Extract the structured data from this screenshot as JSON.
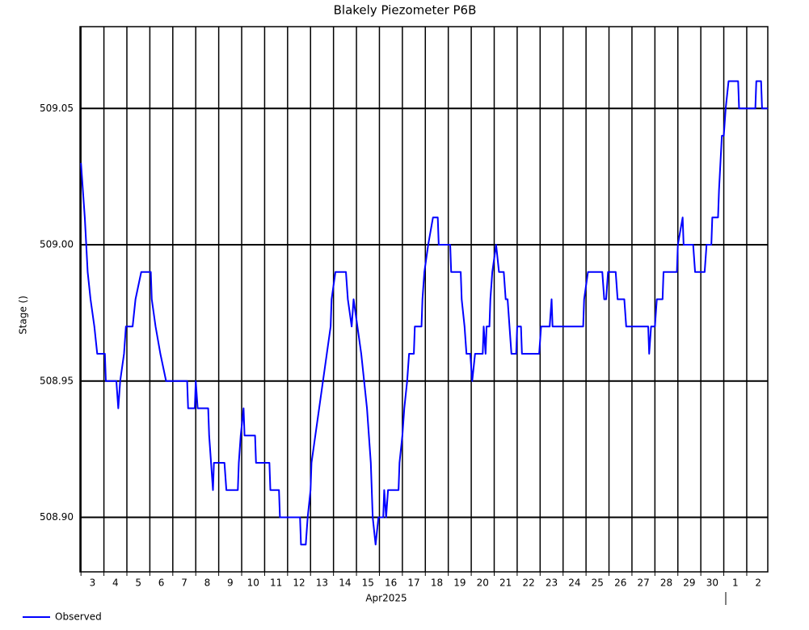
{
  "chart_data": {
    "type": "line",
    "title": "Blakely Piezometer P6B",
    "ylabel": "Stage ()",
    "xlabel": "Apr2025",
    "legend": "bottom left",
    "grid": true,
    "xlim": [
      "2025-04-02T23:00",
      "2025-05-02T22:00"
    ],
    "xticks": [
      {
        "value": "2025-04-03",
        "label": "3"
      },
      {
        "value": "2025-04-04",
        "label": "4"
      },
      {
        "value": "2025-04-05",
        "label": "5"
      },
      {
        "value": "2025-04-06",
        "label": "6"
      },
      {
        "value": "2025-04-07",
        "label": "7"
      },
      {
        "value": "2025-04-08",
        "label": "8"
      },
      {
        "value": "2025-04-09",
        "label": "9"
      },
      {
        "value": "2025-04-10",
        "label": "10"
      },
      {
        "value": "2025-04-11",
        "label": "11"
      },
      {
        "value": "2025-04-12",
        "label": "12"
      },
      {
        "value": "2025-04-13",
        "label": "13"
      },
      {
        "value": "2025-04-14",
        "label": "14"
      },
      {
        "value": "2025-04-15",
        "label": "15"
      },
      {
        "value": "2025-04-16",
        "label": "16"
      },
      {
        "value": "2025-04-17",
        "label": "17"
      },
      {
        "value": "2025-04-18",
        "label": "18"
      },
      {
        "value": "2025-04-19",
        "label": "19"
      },
      {
        "value": "2025-04-20",
        "label": "20"
      },
      {
        "value": "2025-04-21",
        "label": "21"
      },
      {
        "value": "2025-04-22",
        "label": "22"
      },
      {
        "value": "2025-04-23",
        "label": "23"
      },
      {
        "value": "2025-04-24",
        "label": "24"
      },
      {
        "value": "2025-04-25",
        "label": "25"
      },
      {
        "value": "2025-04-26",
        "label": "26"
      },
      {
        "value": "2025-04-27",
        "label": "27"
      },
      {
        "value": "2025-04-28",
        "label": "28"
      },
      {
        "value": "2025-04-29",
        "label": "29"
      },
      {
        "value": "2025-04-30",
        "label": "30"
      },
      {
        "value": "2025-05-01",
        "label": "1"
      },
      {
        "value": "2025-05-02",
        "label": "2"
      }
    ],
    "ylim": [
      508.88,
      509.08
    ],
    "yticks": [
      {
        "value": 508.9,
        "label": "508.90"
      },
      508.95,
      {
        "value": 509.0,
        "label": "509.00"
      },
      509.05
    ],
    "x": [
      "2025-04-03T00:00",
      "2025-04-03T02:00",
      "2025-04-03T04:00",
      "2025-04-03T07:00",
      "2025-04-03T10:00",
      "2025-04-03T14:00",
      "2025-04-03T17:00",
      "2025-04-04T01:00",
      "2025-04-04T02:00",
      "2025-04-04T13:00",
      "2025-04-04T15:00",
      "2025-04-04T17:00",
      "2025-04-04T21:00",
      "2025-04-04T23:00",
      "2025-04-05T06:00",
      "2025-04-05T09:00",
      "2025-04-05T15:00",
      "2025-04-06T01:00",
      "2025-04-06T02:00",
      "2025-04-06T06:00",
      "2025-04-06T11:00",
      "2025-04-06T17:00",
      "2025-04-07T15:00",
      "2025-04-07T16:00",
      "2025-04-07T23:00",
      "2025-04-08T00:00",
      "2025-04-08T02:00",
      "2025-04-08T13:00",
      "2025-04-08T14:00",
      "2025-04-08T16:00",
      "2025-04-08T18:00",
      "2025-04-08T19:00",
      "2025-04-09T06:00",
      "2025-04-09T08:00",
      "2025-04-09T20:00",
      "2025-04-09T21:00",
      "2025-04-09T23:00",
      "2025-04-10T02:00",
      "2025-04-10T03:00",
      "2025-04-10T14:00",
      "2025-04-10T15:00",
      "2025-04-11T05:00",
      "2025-04-11T06:00",
      "2025-04-11T15:00",
      "2025-04-11T16:00",
      "2025-04-12T13:00",
      "2025-04-12T14:00",
      "2025-04-12T19:00",
      "2025-04-12T21:00",
      "2025-04-13T00:00",
      "2025-04-13T01:00",
      "2025-04-13T05:00",
      "2025-04-13T09:00",
      "2025-04-13T13:00",
      "2025-04-13T17:00",
      "2025-04-13T21:00",
      "2025-04-13T22:00",
      "2025-04-14T02:00",
      "2025-04-14T13:00",
      "2025-04-14T15:00",
      "2025-04-14T19:00",
      "2025-04-14T21:00",
      "2025-04-15T01:00",
      "2025-04-15T05:00",
      "2025-04-15T08:00",
      "2025-04-15T11:00",
      "2025-04-15T13:00",
      "2025-04-15T15:00",
      "2025-04-15T17:00",
      "2025-04-15T20:00",
      "2025-04-15T23:00",
      "2025-04-16T04:00",
      "2025-04-16T05:00",
      "2025-04-16T07:00",
      "2025-04-16T09:00",
      "2025-04-16T20:00",
      "2025-04-16T21:00",
      "2025-04-17T00:00",
      "2025-04-17T02:00",
      "2025-04-17T05:00",
      "2025-04-17T07:00",
      "2025-04-17T12:00",
      "2025-04-17T13:00",
      "2025-04-17T20:00",
      "2025-04-17T21:00",
      "2025-04-17T23:00",
      "2025-04-18T03:00",
      "2025-04-18T08:00",
      "2025-04-18T13:00",
      "2025-04-18T14:00",
      "2025-04-19T02:00",
      "2025-04-19T03:00",
      "2025-04-19T13:00",
      "2025-04-19T14:00",
      "2025-04-19T17:00",
      "2025-04-19T19:00",
      "2025-04-19T23:00",
      "2025-04-20T01:00",
      "2025-04-20T04:00",
      "2025-04-20T12:00",
      "2025-04-20T13:00",
      "2025-04-20T15:00",
      "2025-04-20T16:00",
      "2025-04-20T19:00",
      "2025-04-20T20:00",
      "2025-04-20T22:00",
      "2025-04-21T02:00",
      "2025-04-21T05:00",
      "2025-04-21T10:00",
      "2025-04-21T12:00",
      "2025-04-21T14:00",
      "2025-04-21T16:00",
      "2025-04-21T18:00",
      "2025-04-21T23:00",
      "2025-04-22T00:00",
      "2025-04-22T04:00",
      "2025-04-22T05:00",
      "2025-04-22T23:00",
      "2025-04-23T01:00",
      "2025-04-23T10:00",
      "2025-04-23T12:00",
      "2025-04-23T13:00",
      "2025-04-24T21:00",
      "2025-04-24T22:00",
      "2025-04-25T02:00",
      "2025-04-25T17:00",
      "2025-04-25T19:00",
      "2025-04-25T21:00",
      "2025-04-25T23:00",
      "2025-04-26T07:00",
      "2025-04-26T09:00",
      "2025-04-26T16:00",
      "2025-04-26T18:00",
      "2025-04-27T17:00",
      "2025-04-27T18:00",
      "2025-04-27T20:00",
      "2025-04-28T00:00",
      "2025-04-28T02:00",
      "2025-04-28T08:00",
      "2025-04-28T09:00",
      "2025-04-28T23:00",
      "2025-04-29T00:00",
      "2025-04-29T05:00",
      "2025-04-29T06:00",
      "2025-04-29T16:00",
      "2025-04-29T18:00",
      "2025-04-30T04:00",
      "2025-04-30T06:00",
      "2025-04-30T11:00",
      "2025-04-30T12:00",
      "2025-04-30T18:00",
      "2025-04-30T19:00",
      "2025-04-30T22:00",
      "2025-05-01T00:00",
      "2025-05-01T02:00",
      "2025-05-01T05:00",
      "2025-05-01T15:00",
      "2025-05-01T16:00",
      "2025-05-02T09:00",
      "2025-05-02T10:00",
      "2025-05-02T15:00",
      "2025-05-02T16:00",
      "2025-05-02T22:00"
    ],
    "series": [
      {
        "name": "Observed",
        "color": "#0000ff",
        "values": [
          509.03,
          509.02,
          509.01,
          508.99,
          508.98,
          508.97,
          508.96,
          508.96,
          508.95,
          508.95,
          508.94,
          508.95,
          508.96,
          508.97,
          508.97,
          508.98,
          508.99,
          508.99,
          508.98,
          508.97,
          508.96,
          508.95,
          508.95,
          508.94,
          508.94,
          508.95,
          508.94,
          508.94,
          508.93,
          508.92,
          508.91,
          508.92,
          508.92,
          508.91,
          508.91,
          508.92,
          508.93,
          508.94,
          508.93,
          508.93,
          508.92,
          508.92,
          508.91,
          508.91,
          508.9,
          508.9,
          508.89,
          508.89,
          508.9,
          508.91,
          508.92,
          508.93,
          508.94,
          508.95,
          508.96,
          508.97,
          508.98,
          508.99,
          508.99,
          508.98,
          508.97,
          508.98,
          508.97,
          508.96,
          508.95,
          508.94,
          508.93,
          508.92,
          508.9,
          508.89,
          508.9,
          508.9,
          508.91,
          508.9,
          508.91,
          508.91,
          508.92,
          508.93,
          508.94,
          508.95,
          508.96,
          508.96,
          508.97,
          508.97,
          508.98,
          508.99,
          509.0,
          509.01,
          509.01,
          509.0,
          509.0,
          508.99,
          508.99,
          508.98,
          508.97,
          508.96,
          508.96,
          508.95,
          508.96,
          508.96,
          508.97,
          508.96,
          508.97,
          508.97,
          508.98,
          508.99,
          509.0,
          508.99,
          508.99,
          508.98,
          508.98,
          508.97,
          508.96,
          508.96,
          508.97,
          508.97,
          508.96,
          508.96,
          508.97,
          508.97,
          508.98,
          508.97,
          508.97,
          508.98,
          508.99,
          508.99,
          508.98,
          508.98,
          508.99,
          508.99,
          508.98,
          508.98,
          508.97,
          508.97,
          508.96,
          508.97,
          508.97,
          508.98,
          508.98,
          508.99,
          508.99,
          509.0,
          509.01,
          509.0,
          509.0,
          508.99,
          508.99,
          509.0,
          509.0,
          509.01,
          509.01,
          509.02,
          509.04,
          509.04,
          509.05,
          509.06,
          509.06,
          509.05,
          509.05,
          509.06,
          509.06,
          509.05,
          509.05
        ]
      }
    ]
  }
}
